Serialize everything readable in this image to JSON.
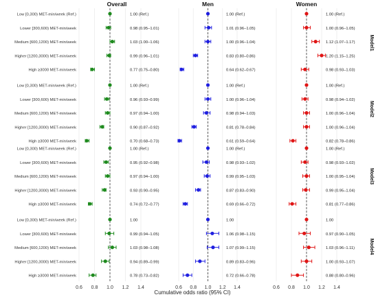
{
  "chart_data": {
    "type": "scatter",
    "subtype": "forest-plot",
    "xlabel": "Cumulative odds ratio (95% CI)",
    "xlim": [
      0.6,
      1.4
    ],
    "xticks": [
      0.6,
      0.8,
      1.0,
      1.2,
      1.4
    ],
    "xtick_labels": [
      "0.6",
      "0.8",
      "1.0",
      "1.2",
      "1.4"
    ],
    "reference_line": 1.0,
    "grid": true,
    "legend": "none",
    "row_labels": [
      "Low [0,300) MET-min/week (Ref.)",
      "Lower [300,600) MET-min/week",
      "Medium [600,1200) MET-min/week",
      "Higher [1200,3000) MET-min/week",
      "High ≥3000 MET-min/week"
    ],
    "panels": [
      {
        "name": "Overall",
        "color": "#1e8a1e"
      },
      {
        "name": "Men",
        "color": "#1f1fe0"
      },
      {
        "name": "Women",
        "color": "#e01515"
      }
    ],
    "models": [
      {
        "name": "Model1",
        "rows": [
          [
            {
              "or": 1.0,
              "lo": 1.0,
              "hi": 1.0,
              "label": "1.00 (Ref.)"
            },
            {
              "or": 1.0,
              "lo": 1.0,
              "hi": 1.0,
              "label": "1.00 (Ref.)"
            },
            {
              "or": 1.0,
              "lo": 1.0,
              "hi": 1.0,
              "label": "1.00 (Ref.)"
            }
          ],
          [
            {
              "or": 0.98,
              "lo": 0.95,
              "hi": 1.01,
              "label": "0.98 (0.95–1.01)"
            },
            {
              "or": 1.01,
              "lo": 0.96,
              "hi": 1.05,
              "label": "1.01 (0.96–1.05)"
            },
            {
              "or": 1.0,
              "lo": 0.96,
              "hi": 1.05,
              "label": "1.00 (0.96–1.05)"
            }
          ],
          [
            {
              "or": 1.03,
              "lo": 1.0,
              "hi": 1.06,
              "label": "1.03 (1.00–1.06)"
            },
            {
              "or": 1.0,
              "lo": 0.96,
              "hi": 1.04,
              "label": "1.00 (0.96–1.04)"
            },
            {
              "or": 1.12,
              "lo": 1.07,
              "hi": 1.17,
              "label": "1.12 (1.07–1.17)"
            }
          ],
          [
            {
              "or": 0.99,
              "lo": 0.96,
              "hi": 1.01,
              "label": "0.99 (0.96–1.01)"
            },
            {
              "or": 0.83,
              "lo": 0.8,
              "hi": 0.86,
              "label": "0.83 (0.80–0.86)"
            },
            {
              "or": 1.2,
              "lo": 1.15,
              "hi": 1.25,
              "label": "1.20 (1.15–1.25)"
            }
          ],
          [
            {
              "or": 0.77,
              "lo": 0.75,
              "hi": 0.8,
              "label": "0.77 (0.75–0.80)"
            },
            {
              "or": 0.64,
              "lo": 0.62,
              "hi": 0.67,
              "label": "0.64 (0.62–0.67)"
            },
            {
              "or": 0.98,
              "lo": 0.93,
              "hi": 1.03,
              "label": "0.98 (0.93–1.03)"
            }
          ]
        ]
      },
      {
        "name": "Model2",
        "rows": [
          [
            {
              "or": 1.0,
              "lo": 1.0,
              "hi": 1.0,
              "label": "1.00 (Ref.)"
            },
            {
              "or": 1.0,
              "lo": 1.0,
              "hi": 1.0,
              "label": "1.00 (Ref.)"
            },
            {
              "or": 1.0,
              "lo": 1.0,
              "hi": 1.0,
              "label": "1.00 (Ref.)"
            }
          ],
          [
            {
              "or": 0.96,
              "lo": 0.93,
              "hi": 0.99,
              "label": "0.96 (0.93–0.99)"
            },
            {
              "or": 1.0,
              "lo": 0.96,
              "hi": 1.04,
              "label": "1.00 (0.96–1.04)"
            },
            {
              "or": 0.98,
              "lo": 0.94,
              "hi": 1.02,
              "label": "0.98 (0.94–1.02)"
            }
          ],
          [
            {
              "or": 0.97,
              "lo": 0.94,
              "hi": 1.0,
              "label": "0.97 (0.94–1.00)"
            },
            {
              "or": 0.98,
              "lo": 0.94,
              "hi": 1.03,
              "label": "0.98 (0.94–1.03)"
            },
            {
              "or": 1.0,
              "lo": 0.96,
              "hi": 1.04,
              "label": "1.00 (0.96–1.04)"
            }
          ],
          [
            {
              "or": 0.9,
              "lo": 0.87,
              "hi": 0.92,
              "label": "0.90 (0.87–0.92)"
            },
            {
              "or": 0.81,
              "lo": 0.78,
              "hi": 0.84,
              "label": "0.81 (0.78–0.84)"
            },
            {
              "or": 1.0,
              "lo": 0.96,
              "hi": 1.04,
              "label": "1.00 (0.96–1.04)"
            }
          ],
          [
            {
              "or": 0.7,
              "lo": 0.68,
              "hi": 0.73,
              "label": "0.70 (0.68–0.73)"
            },
            {
              "or": 0.61,
              "lo": 0.59,
              "hi": 0.64,
              "label": "0.61 (0.59–0.64)"
            },
            {
              "or": 0.82,
              "lo": 0.78,
              "hi": 0.86,
              "label": "0.82 (0.78–0.86)"
            }
          ]
        ]
      },
      {
        "name": "Model3",
        "rows": [
          [
            {
              "or": 1.0,
              "lo": 1.0,
              "hi": 1.0,
              "label": "1.00 (Ref.)"
            },
            {
              "or": 1.0,
              "lo": 1.0,
              "hi": 1.0,
              "label": "1.00 (Ref.)"
            },
            {
              "or": 1.0,
              "lo": 1.0,
              "hi": 1.0,
              "label": "1.00 (Ref.)"
            }
          ],
          [
            {
              "or": 0.95,
              "lo": 0.92,
              "hi": 0.98,
              "label": "0.95 (0.92–0.98)"
            },
            {
              "or": 0.98,
              "lo": 0.93,
              "hi": 1.02,
              "label": "0.98 (0.93–1.02)"
            },
            {
              "or": 0.98,
              "lo": 0.93,
              "hi": 1.02,
              "label": "0.98 (0.93–1.02)"
            }
          ],
          [
            {
              "or": 0.97,
              "lo": 0.94,
              "hi": 1.0,
              "label": "0.97 (0.94–1.00)"
            },
            {
              "or": 0.99,
              "lo": 0.95,
              "hi": 1.03,
              "label": "0.99 (0.95–1.03)"
            },
            {
              "or": 1.0,
              "lo": 0.95,
              "hi": 1.04,
              "label": "1.00 (0.95–1.04)"
            }
          ],
          [
            {
              "or": 0.93,
              "lo": 0.9,
              "hi": 0.95,
              "label": "0.93 (0.90–0.95)"
            },
            {
              "or": 0.87,
              "lo": 0.83,
              "hi": 0.9,
              "label": "0.87 (0.83–0.90)"
            },
            {
              "or": 0.99,
              "lo": 0.95,
              "hi": 1.04,
              "label": "0.99 (0.95–1.04)"
            }
          ],
          [
            {
              "or": 0.74,
              "lo": 0.72,
              "hi": 0.77,
              "label": "0.74 (0.72–0.77)"
            },
            {
              "or": 0.69,
              "lo": 0.66,
              "hi": 0.72,
              "label": "0.69 (0.66–0.72)"
            },
            {
              "or": 0.81,
              "lo": 0.77,
              "hi": 0.86,
              "label": "0.81 (0.77–0.86)"
            }
          ]
        ]
      },
      {
        "name": "Model4",
        "rows": [
          [
            {
              "or": 1.0,
              "lo": 1.0,
              "hi": 1.0,
              "label": "1.00"
            },
            {
              "or": 1.0,
              "lo": 1.0,
              "hi": 1.0,
              "label": "1.00"
            },
            {
              "or": 1.0,
              "lo": 1.0,
              "hi": 1.0,
              "label": "1.00"
            }
          ],
          [
            {
              "or": 0.99,
              "lo": 0.94,
              "hi": 1.05,
              "label": "0.99 (0.94–1.05)"
            },
            {
              "or": 1.06,
              "lo": 0.98,
              "hi": 1.15,
              "label": "1.06 (0.98–1.15)"
            },
            {
              "or": 0.97,
              "lo": 0.9,
              "hi": 1.05,
              "label": "0.97 (0.90–1.05)"
            }
          ],
          [
            {
              "or": 1.03,
              "lo": 0.98,
              "hi": 1.08,
              "label": "1.03 (0.98–1.08)"
            },
            {
              "or": 1.07,
              "lo": 0.99,
              "hi": 1.15,
              "label": "1.07 (0.99–1.15)"
            },
            {
              "or": 1.03,
              "lo": 0.96,
              "hi": 1.11,
              "label": "1.03 (0.96–1.11)"
            }
          ],
          [
            {
              "or": 0.94,
              "lo": 0.89,
              "hi": 0.99,
              "label": "0.94 (0.89–0.99)"
            },
            {
              "or": 0.89,
              "lo": 0.83,
              "hi": 0.96,
              "label": "0.89 (0.83–0.96)"
            },
            {
              "or": 1.0,
              "lo": 0.93,
              "hi": 1.07,
              "label": "1.00 (0.93–1.07)"
            }
          ],
          [
            {
              "or": 0.78,
              "lo": 0.73,
              "hi": 0.82,
              "label": "0.78 (0.73–0.82)"
            },
            {
              "or": 0.72,
              "lo": 0.66,
              "hi": 0.78,
              "label": "0.72 (0.66–0.78)"
            },
            {
              "or": 0.88,
              "lo": 0.8,
              "hi": 0.96,
              "label": "0.88 (0.80–0.96)"
            }
          ]
        ]
      }
    ]
  }
}
